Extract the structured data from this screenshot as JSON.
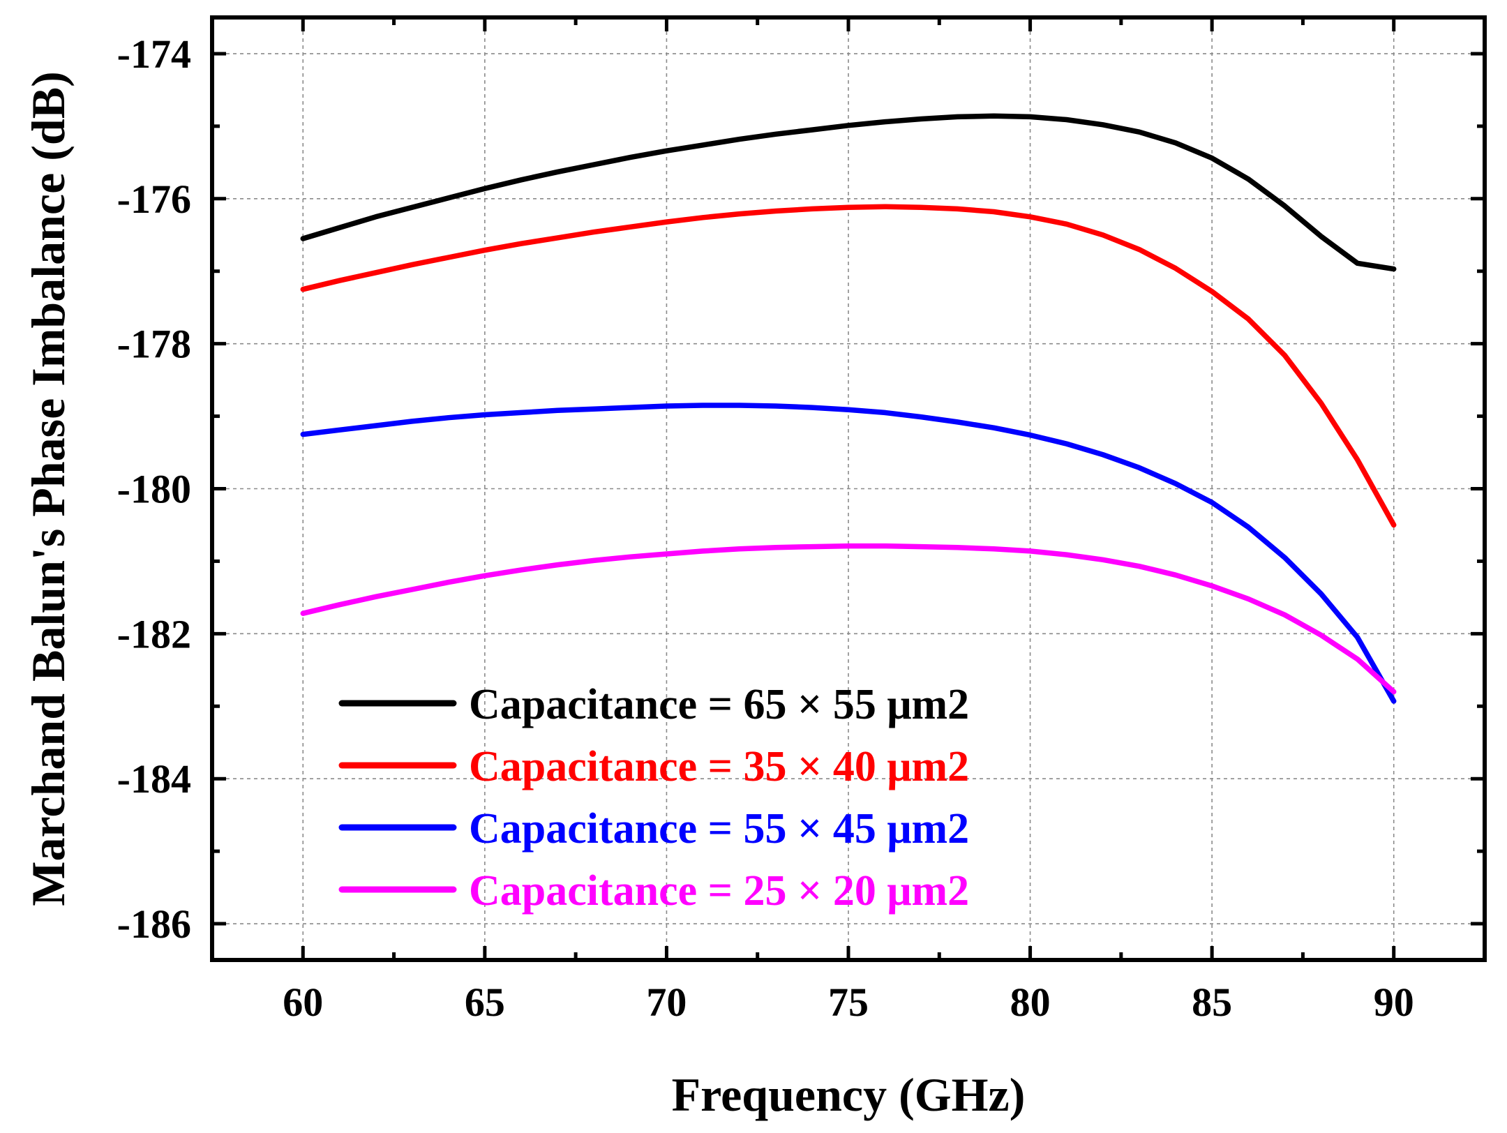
{
  "chart_data": {
    "type": "line",
    "title": "",
    "xlabel": "Frequency (GHz)",
    "ylabel": "Marchand Balun's Phase Imbalance (dB)",
    "xlim": [
      57.5,
      92.5
    ],
    "ylim": [
      -186.5,
      -173.5
    ],
    "grid": true,
    "legend_position": "bottom-left",
    "x_ticks": [
      60,
      65,
      70,
      75,
      80,
      85,
      90
    ],
    "x_tick_labels": [
      "60",
      "65",
      "70",
      "75",
      "80",
      "85",
      "90"
    ],
    "y_ticks": [
      -174,
      -176,
      -178,
      -180,
      -182,
      -184,
      -186
    ],
    "y_tick_labels": [
      "-174",
      "-176",
      "-178",
      "-180",
      "-182",
      "-184",
      "-186"
    ],
    "x": [
      60,
      61,
      62,
      63,
      64,
      65,
      66,
      67,
      68,
      69,
      70,
      71,
      72,
      73,
      74,
      75,
      76,
      77,
      78,
      79,
      80,
      81,
      82,
      83,
      84,
      85,
      86,
      87,
      88,
      89,
      90
    ],
    "series": [
      {
        "name": "Capacitance = 65 × 55 μm2",
        "color": "#000000",
        "values": [
          -176.55,
          -176.4,
          -176.25,
          -176.12,
          -175.99,
          -175.86,
          -175.74,
          -175.63,
          -175.53,
          -175.43,
          -175.34,
          -175.26,
          -175.18,
          -175.11,
          -175.05,
          -174.99,
          -174.94,
          -174.9,
          -174.87,
          -174.86,
          -174.87,
          -174.91,
          -174.98,
          -175.08,
          -175.23,
          -175.44,
          -175.73,
          -176.1,
          -176.52,
          -176.89,
          -176.97
        ]
      },
      {
        "name": "Capacitance = 35 × 40 μm2",
        "color": "#ff0000",
        "values": [
          -177.25,
          -177.13,
          -177.02,
          -176.91,
          -176.81,
          -176.71,
          -176.62,
          -176.54,
          -176.46,
          -176.39,
          -176.32,
          -176.26,
          -176.21,
          -176.17,
          -176.14,
          -176.12,
          -176.11,
          -176.12,
          -176.14,
          -176.18,
          -176.25,
          -176.35,
          -176.5,
          -176.7,
          -176.96,
          -177.28,
          -177.66,
          -178.16,
          -178.82,
          -179.6,
          -180.5
        ]
      },
      {
        "name": "Capacitance = 55 × 45 μm2",
        "color": "#0000ff",
        "values": [
          -179.25,
          -179.19,
          -179.13,
          -179.07,
          -179.02,
          -178.98,
          -178.95,
          -178.92,
          -178.9,
          -178.88,
          -178.86,
          -178.85,
          -178.85,
          -178.86,
          -178.88,
          -178.91,
          -178.95,
          -179.01,
          -179.08,
          -179.16,
          -179.26,
          -179.38,
          -179.53,
          -179.71,
          -179.93,
          -180.19,
          -180.53,
          -180.95,
          -181.45,
          -182.05,
          -182.93
        ]
      },
      {
        "name": "Capacitance = 25 × 20 μm2",
        "color": "#ff00ff",
        "values": [
          -181.72,
          -181.6,
          -181.49,
          -181.39,
          -181.29,
          -181.2,
          -181.12,
          -181.05,
          -180.99,
          -180.94,
          -180.9,
          -180.86,
          -180.83,
          -180.81,
          -180.8,
          -180.79,
          -180.79,
          -180.8,
          -180.81,
          -180.83,
          -180.86,
          -180.91,
          -180.98,
          -181.07,
          -181.19,
          -181.34,
          -181.52,
          -181.74,
          -182.02,
          -182.35,
          -182.8
        ]
      }
    ]
  }
}
